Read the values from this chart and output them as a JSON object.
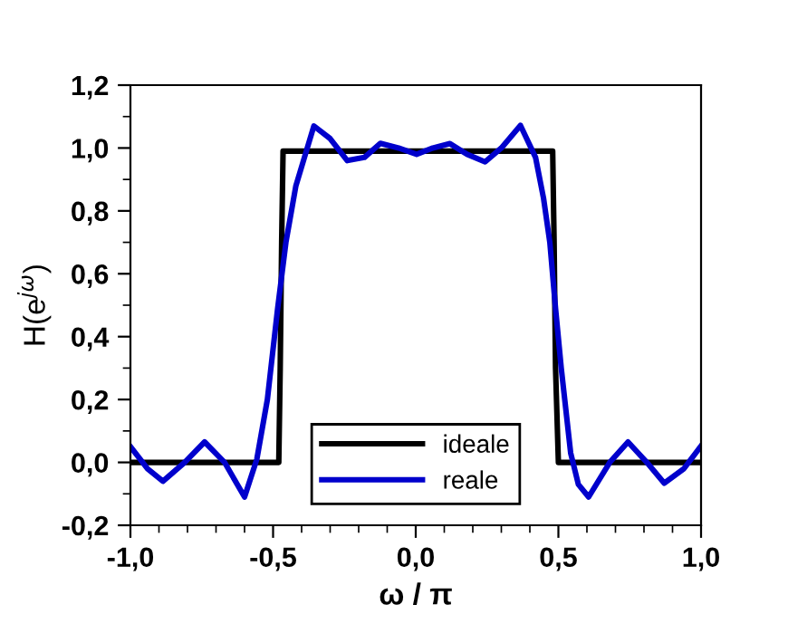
{
  "chart_data": {
    "type": "line",
    "xlabel": "ω / π",
    "ylabel": "H(e$^{jω}$)",
    "xlim": [
      -1.0,
      1.0
    ],
    "ylim": [
      -0.2,
      1.2
    ],
    "xticks": [
      {
        "value": -1.0,
        "label": "-1,0"
      },
      {
        "value": -0.5,
        "label": "-0,5"
      },
      {
        "value": 0.0,
        "label": "0,0"
      },
      {
        "value": 0.5,
        "label": "0,5"
      },
      {
        "value": 1.0,
        "label": "1,0"
      }
    ],
    "yticks": [
      {
        "value": -0.2,
        "label": "-0,2"
      },
      {
        "value": 0.0,
        "label": "0,0"
      },
      {
        "value": 0.2,
        "label": "0,2"
      },
      {
        "value": 0.4,
        "label": "0,4"
      },
      {
        "value": 0.6,
        "label": "0,6"
      },
      {
        "value": 0.8,
        "label": "0,8"
      },
      {
        "value": 1.0,
        "label": "1,0"
      },
      {
        "value": 1.2,
        "label": "1,2"
      }
    ],
    "grid": false,
    "legend": "bottom",
    "marker": "none",
    "line_style": "solid",
    "series": [
      {
        "name": "ideale",
        "color": "#000000",
        "x": [
          -1.0,
          -0.48,
          -0.475,
          -0.47,
          -0.465,
          0.48,
          0.485,
          0.49,
          0.5,
          1.0
        ],
        "values": [
          0.0,
          0.0,
          0.3,
          0.7,
          0.99,
          0.99,
          0.7,
          0.3,
          0.0,
          0.0
        ]
      },
      {
        "name": "reale",
        "color": "#0000cc",
        "x": [
          -1.0,
          -0.94,
          -0.886,
          -0.81,
          -0.74,
          -0.67,
          -0.6,
          -0.557,
          -0.52,
          -0.484,
          -0.455,
          -0.42,
          -0.357,
          -0.3,
          -0.24,
          -0.18,
          -0.124,
          -0.06,
          0.003,
          0.06,
          0.12,
          0.18,
          0.243,
          0.3,
          0.367,
          0.42,
          0.448,
          0.47,
          0.49,
          0.51,
          0.543,
          0.57,
          0.606,
          0.68,
          0.744,
          0.81,
          0.871,
          0.94,
          0.998
        ],
        "values": [
          0.05,
          -0.02,
          -0.06,
          0.0,
          0.065,
          0.0,
          -0.11,
          0.01,
          0.2,
          0.49,
          0.7,
          0.88,
          1.07,
          1.03,
          0.96,
          0.97,
          1.015,
          1.0,
          0.98,
          1.0,
          1.014,
          0.98,
          0.956,
          1.0,
          1.072,
          0.97,
          0.84,
          0.7,
          0.49,
          0.3,
          0.03,
          -0.07,
          -0.11,
          0.0,
          0.065,
          0.0,
          -0.066,
          -0.02,
          0.05
        ]
      }
    ]
  }
}
